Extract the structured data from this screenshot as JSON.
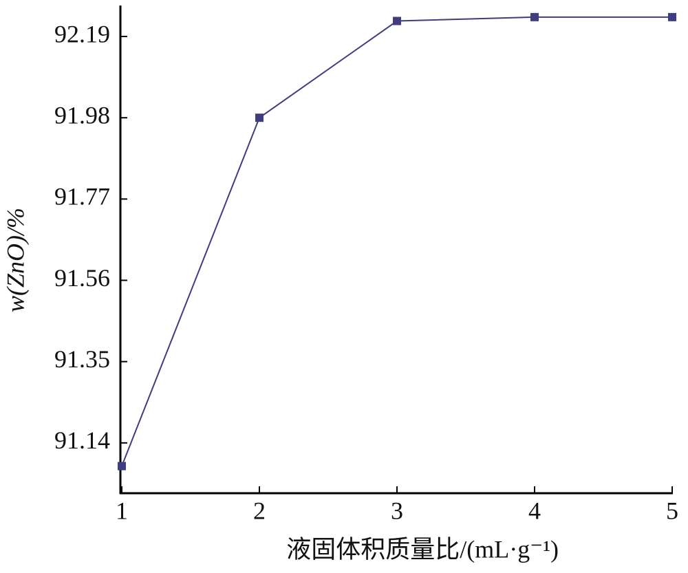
{
  "chart_data": {
    "type": "line",
    "x_label": "液固体积质量比/(mL·g⁻¹)",
    "y_label": "w(ZnO)/%",
    "x": [
      1,
      2,
      3,
      4,
      5
    ],
    "series": [
      {
        "name": "w(ZnO)",
        "color": "#3d3d80",
        "values": [
          91.08,
          91.98,
          92.23,
          92.24,
          92.24
        ]
      }
    ],
    "xlim": [
      1,
      5
    ],
    "xticks": [
      1,
      2,
      3,
      4,
      5
    ],
    "ylim": [
      91.01,
      92.27
    ],
    "yticks": [
      {
        "value": 91.14,
        "label": "91.14"
      },
      {
        "value": 91.35,
        "label": "91.35"
      },
      {
        "value": 91.56,
        "label": "91.56"
      },
      {
        "value": 91.77,
        "label": "91.77"
      },
      {
        "value": 91.98,
        "label": "91.98"
      },
      {
        "value": 92.19,
        "label": "92.19"
      }
    ],
    "grid": false
  }
}
